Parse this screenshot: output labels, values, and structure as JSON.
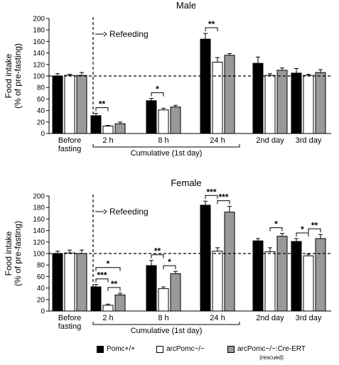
{
  "colors": {
    "pomc_wt": "#000000",
    "arc_pomc": "#ffffff",
    "rescued": "#999999"
  },
  "legend": {
    "items": [
      {
        "label": "Pomc+/+"
      },
      {
        "label": "arcPomc−/−"
      },
      {
        "label": "arcPomc−/−:Cre-ERT",
        "sub": "(rescued)"
      }
    ]
  },
  "chart_data": [
    {
      "type": "bar",
      "title": "Male",
      "ylabel": "Food intake\n(% of pre-fasting)",
      "ylim": [
        0,
        200
      ],
      "yticks": [
        0,
        20,
        40,
        60,
        80,
        100,
        120,
        140,
        160,
        180,
        200
      ],
      "reference_line": 100,
      "annotation": "Refeeding",
      "categories": [
        "Before fasting",
        "2 h",
        "8 h",
        "24 h",
        "2nd day",
        "3rd day"
      ],
      "category_lines": [
        [
          "Before",
          "fasting"
        ],
        [
          "2 h"
        ],
        [
          "8 h"
        ],
        [
          "24 h"
        ],
        [
          "2nd day"
        ],
        [
          "3rd day"
        ]
      ],
      "group_label": "Cumulative (1st day)",
      "series": [
        {
          "name": "Pomc+/+",
          "values": [
            100,
            31,
            57,
            164,
            122,
            105
          ],
          "errors": [
            4,
            4,
            4,
            10,
            11,
            8
          ]
        },
        {
          "name": "arcPomc−/−",
          "values": [
            101,
            13,
            41,
            124,
            101,
            101
          ],
          "errors": [
            2,
            1,
            3,
            8,
            3,
            2
          ]
        },
        {
          "name": "arcPomc−/−:Cre-ERT (rescued)",
          "values": [
            101,
            17,
            46,
            136,
            110,
            106
          ],
          "errors": [
            5,
            3,
            3,
            3,
            4,
            5
          ]
        }
      ],
      "significance": [
        {
          "category": 1,
          "from": 0,
          "to": 1,
          "label": "**",
          "level": 0
        },
        {
          "category": 2,
          "from": 0,
          "to": 1,
          "label": "*",
          "level": 0
        },
        {
          "category": 3,
          "from": 0,
          "to": 1,
          "label": "**",
          "level": 0
        }
      ]
    },
    {
      "type": "bar",
      "title": "Female",
      "ylabel": "Food intake\n(% of pre-fasting)",
      "ylim": [
        0,
        200
      ],
      "yticks": [
        0,
        20,
        40,
        60,
        80,
        100,
        120,
        140,
        160,
        180,
        200
      ],
      "reference_line": 100,
      "annotation": "Refeeding",
      "categories": [
        "Before fasting",
        "2 h",
        "8 h",
        "24 h",
        "2nd day",
        "3rd day"
      ],
      "category_lines": [
        [
          "Before",
          "fasting"
        ],
        [
          "2 h"
        ],
        [
          "8 h"
        ],
        [
          "24 h"
        ],
        [
          "2nd day"
        ],
        [
          "3rd day"
        ]
      ],
      "group_label": "Cumulative (1st day)",
      "series": [
        {
          "name": "Pomc+/+",
          "values": [
            100,
            42,
            79,
            184,
            122,
            121
          ],
          "errors": [
            4,
            4,
            9,
            7,
            4,
            5
          ]
        },
        {
          "name": "arcPomc−/−",
          "values": [
            101,
            10,
            39,
            104,
            103,
            96
          ],
          "errors": [
            5,
            2,
            3,
            6,
            7,
            3
          ]
        },
        {
          "name": "arcPomc−/−:Cre-ERT (rescued)",
          "values": [
            100,
            28,
            65,
            172,
            130,
            126
          ],
          "errors": [
            6,
            3,
            4,
            10,
            5,
            7
          ]
        }
      ],
      "significance": [
        {
          "category": 1,
          "from": 0,
          "to": 1,
          "label": "***",
          "level": 0
        },
        {
          "category": 1,
          "from": 1,
          "to": 2,
          "label": "**",
          "level": 0
        },
        {
          "category": 1,
          "from": 0,
          "to": 2,
          "label": "*",
          "level": 1
        },
        {
          "category": 2,
          "from": 0,
          "to": 1,
          "label": "**",
          "level": 0
        },
        {
          "category": 2,
          "from": 1,
          "to": 2,
          "label": "*",
          "level": 0
        },
        {
          "category": 3,
          "from": 0,
          "to": 1,
          "label": "***",
          "level": 0
        },
        {
          "category": 3,
          "from": 1,
          "to": 2,
          "label": "***",
          "level": 0
        },
        {
          "category": 4,
          "from": 1,
          "to": 2,
          "label": "*",
          "level": 0
        },
        {
          "category": 5,
          "from": 0,
          "to": 1,
          "label": "*",
          "level": 0
        },
        {
          "category": 5,
          "from": 1,
          "to": 2,
          "label": "**",
          "level": 0
        }
      ]
    }
  ]
}
